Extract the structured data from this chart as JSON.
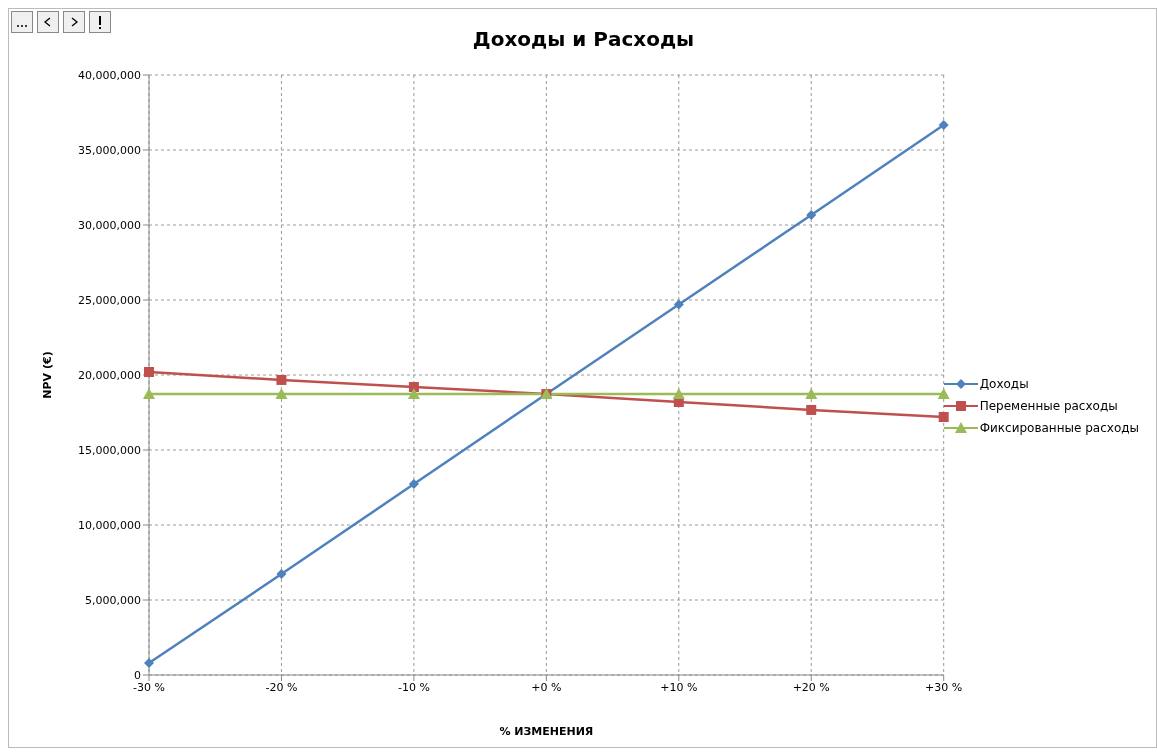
{
  "chart_data": {
    "type": "line",
    "title": "Доходы и Расходы",
    "xlabel": "% ИЗМЕНЕНИЯ",
    "ylabel": "NPV (€)",
    "categories": [
      "-30 %",
      "-20 %",
      "-10 %",
      "+0 %",
      "+10 %",
      "+20 %",
      "+30 %"
    ],
    "series": [
      {
        "name": "Доходы",
        "color": "#4f81bd",
        "marker": "diamond",
        "values": [
          800000,
          6730000,
          12730000,
          18730000,
          24700000,
          30670000,
          36670000
        ]
      },
      {
        "name": "Переменные расходы",
        "color": "#c0504d",
        "marker": "square",
        "values": [
          20200000,
          19670000,
          19200000,
          18730000,
          18200000,
          17670000,
          17200000
        ]
      },
      {
        "name": "Фиксированные расходы",
        "color": "#9bbb59",
        "marker": "triangle",
        "values": [
          18730000,
          18730000,
          18730000,
          18730000,
          18730000,
          18730000,
          18730000
        ]
      }
    ],
    "ylim": [
      0,
      40000000
    ],
    "yticks": [
      0,
      {
        "value": 5000000,
        "label": "5,000,000"
      },
      {
        "value": 10000000,
        "label": "10,000,000"
      },
      {
        "value": 15000000,
        "label": "15,000,000"
      },
      {
        "value": 20000000,
        "label": "20,000,000"
      },
      {
        "value": 25000000,
        "label": "25,000,000"
      },
      {
        "value": 30000000,
        "label": "30,000,000"
      },
      {
        "value": 35000000,
        "label": "35,000,000"
      },
      {
        "value": 40000000,
        "label": "40,000,000"
      }
    ],
    "grid": true,
    "legend": "right",
    "line_style": "solid"
  }
}
